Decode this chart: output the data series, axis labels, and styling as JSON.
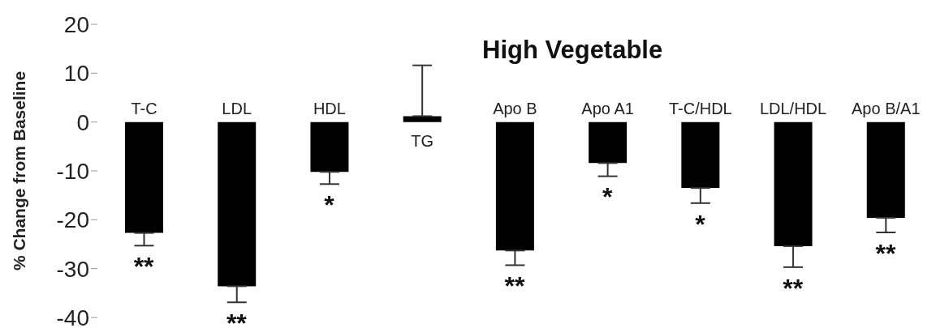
{
  "chart_data": {
    "type": "bar",
    "title": "High Vegetable",
    "ylabel": "% Change from Baseline",
    "categories": [
      "T-C",
      "LDL",
      "HDL",
      "TG",
      "Apo B",
      "Apo A1",
      "T-C/HDL",
      "LDL/HDL",
      "Apo B/A1"
    ],
    "values": [
      -22.7,
      -33.6,
      -10.2,
      1.2,
      -26.3,
      -8.4,
      -13.5,
      -25.4,
      -19.6
    ],
    "errors": [
      [
        -25.3,
        -22.7
      ],
      [
        -36.9,
        -33.6
      ],
      [
        -12.7,
        -10.2
      ],
      [
        1.2,
        11.6
      ],
      [
        -29.3,
        -26.3
      ],
      [
        -11.1,
        -8.4
      ],
      [
        -16.6,
        -13.5
      ],
      [
        -29.7,
        -25.4
      ],
      [
        -22.6,
        -19.6
      ]
    ],
    "color": "#000000",
    "ylim": [
      -40,
      20
    ],
    "yticks": [
      -40,
      -30,
      -20,
      -10,
      0,
      10,
      20
    ],
    "annotations": [
      {
        "text": "**",
        "x": "T-C",
        "y": -25.3
      },
      {
        "text": "**",
        "x": "LDL",
        "y": -36.9
      },
      {
        "text": "*",
        "x": "HDL",
        "y": -12.7
      },
      {
        "text": "**",
        "x": "Apo B",
        "y": -29.3
      },
      {
        "text": "*",
        "x": "Apo A1",
        "y": -11.1
      },
      {
        "text": "*",
        "x": "T-C/HDL",
        "y": -16.6
      },
      {
        "text": "**",
        "x": "LDL/HDL",
        "y": -29.7
      },
      {
        "text": "**",
        "x": "Apo B/A1",
        "y": -22.6
      }
    ]
  }
}
